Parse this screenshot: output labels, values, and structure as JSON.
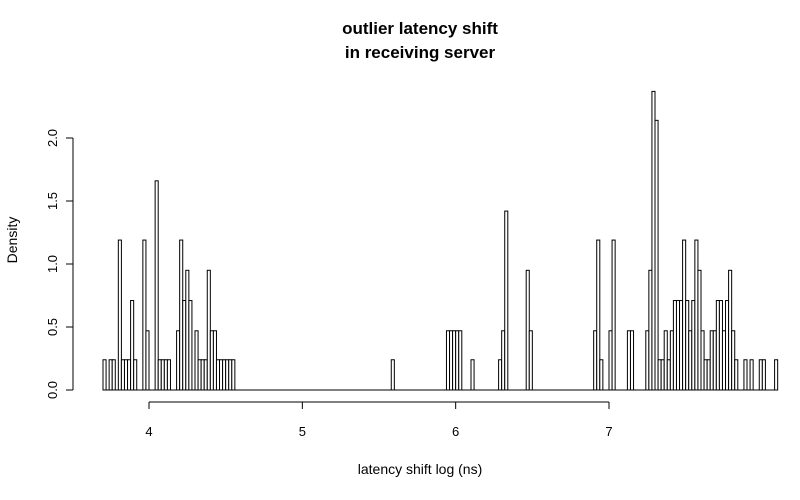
{
  "chart_data": {
    "type": "bar",
    "title_lines": [
      "outlier latency shift",
      "in receiving server"
    ],
    "xlabel": "latency shift log (ns)",
    "ylabel": "Density",
    "x_ticks": [
      4,
      5,
      6,
      7
    ],
    "y_ticks": [
      0.0,
      0.5,
      1.0,
      1.5,
      2.0
    ],
    "y_tick_labels": [
      "0.0",
      "0.5",
      "1.0",
      "1.5",
      "2.0"
    ],
    "xlim": [
      3.65,
      7.82
    ],
    "ylim": [
      0,
      2.4
    ],
    "bin_width": 0.02,
    "x_start": 3.7,
    "values": [
      0.24,
      0,
      0.24,
      0.24,
      0,
      1.19,
      0.24,
      0.24,
      0.24,
      0.71,
      0.24,
      0,
      0,
      1.19,
      0.47,
      0,
      0,
      1.66,
      0.24,
      0.24,
      0.24,
      0.24,
      0,
      0,
      0.47,
      1.19,
      0.71,
      0.95,
      0.71,
      0,
      0.47,
      0.24,
      0.24,
      0.24,
      0.95,
      0.47,
      0.47,
      0.24,
      0.24,
      0.24,
      0.24,
      0.24,
      0.24,
      0,
      0,
      0,
      0,
      0,
      0,
      0,
      0,
      0,
      0,
      0,
      0,
      0,
      0,
      0,
      0,
      0,
      0,
      0,
      0,
      0,
      0,
      0,
      0,
      0,
      0,
      0,
      0,
      0,
      0,
      0,
      0,
      0,
      0,
      0,
      0,
      0,
      0,
      0,
      0,
      0,
      0,
      0,
      0,
      0,
      0,
      0,
      0,
      0,
      0,
      0,
      0.24,
      0,
      0,
      0,
      0,
      0,
      0,
      0,
      0,
      0,
      0,
      0,
      0,
      0,
      0,
      0,
      0,
      0,
      0.47,
      0.47,
      0.47,
      0.47,
      0.47,
      0,
      0,
      0,
      0.24,
      0,
      0,
      0,
      0,
      0,
      0,
      0,
      0,
      0.24,
      0.47,
      1.42,
      0,
      0,
      0,
      0,
      0,
      0,
      0.95,
      0.47,
      0,
      0,
      0,
      0,
      0,
      0,
      0,
      0,
      0,
      0,
      0,
      0,
      0,
      0,
      0,
      0,
      0,
      0,
      0,
      0,
      0.47,
      1.19,
      0.24,
      0,
      0,
      0.47,
      1.19,
      0,
      0,
      0,
      0,
      0.47,
      0.47,
      0,
      0,
      0,
      0,
      0.47,
      0.95,
      2.37,
      2.14,
      0.24,
      0.24,
      0.47,
      0.24,
      0.47,
      0.71,
      0.71,
      0.71,
      1.19,
      0.71,
      0.47,
      0.71,
      1.19,
      0.95,
      0.47,
      0.24,
      0.24,
      0.47,
      0.47,
      0.71,
      0.71,
      0.47,
      0.71,
      0.95,
      0.47,
      0.24,
      0,
      0,
      0.24,
      0,
      0.24,
      0,
      0,
      0.24,
      0.24,
      0,
      0,
      0,
      0.24
    ]
  }
}
